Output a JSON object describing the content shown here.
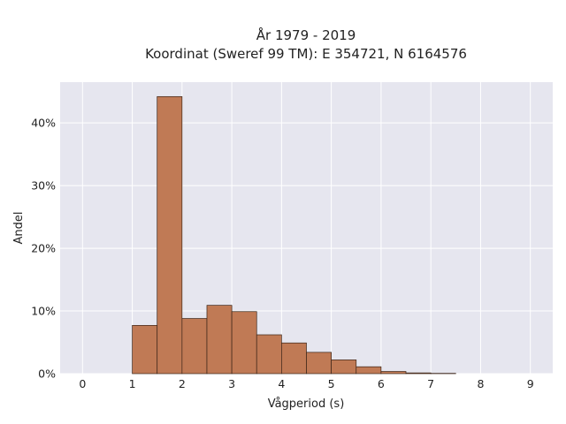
{
  "chart_data": {
    "type": "bar",
    "title": "År 1979 - 2019",
    "subtitle": "Koordinat (Sweref 99 TM): E 354721, N 6164576",
    "xlabel": "Vågperiod (s)",
    "ylabel": "Andel",
    "x_ticks": [
      0,
      1,
      2,
      3,
      4,
      5,
      6,
      7,
      8,
      9
    ],
    "y_ticks": [
      0,
      10,
      20,
      30,
      40
    ],
    "y_tick_labels": [
      "0%",
      "10%",
      "20%",
      "30%",
      "40%"
    ],
    "xlim": [
      -0.45,
      9.45
    ],
    "ylim": [
      0,
      46.5
    ],
    "bin_width": 0.5,
    "bins": [
      {
        "start": 1.0,
        "value": 7.7
      },
      {
        "start": 1.5,
        "value": 44.2
      },
      {
        "start": 2.0,
        "value": 8.8
      },
      {
        "start": 2.5,
        "value": 10.9
      },
      {
        "start": 3.0,
        "value": 9.9
      },
      {
        "start": 3.5,
        "value": 6.2
      },
      {
        "start": 4.0,
        "value": 4.9
      },
      {
        "start": 4.5,
        "value": 3.4
      },
      {
        "start": 5.0,
        "value": 2.2
      },
      {
        "start": 5.5,
        "value": 1.1
      },
      {
        "start": 6.0,
        "value": 0.35
      },
      {
        "start": 6.5,
        "value": 0.12
      },
      {
        "start": 7.0,
        "value": 0.05
      }
    ],
    "grid": true,
    "bar_color": "#c07a55",
    "bar_edge_color": "#3a2418",
    "plot_background": "#e6e6ef",
    "grid_color": "#ffffff"
  }
}
